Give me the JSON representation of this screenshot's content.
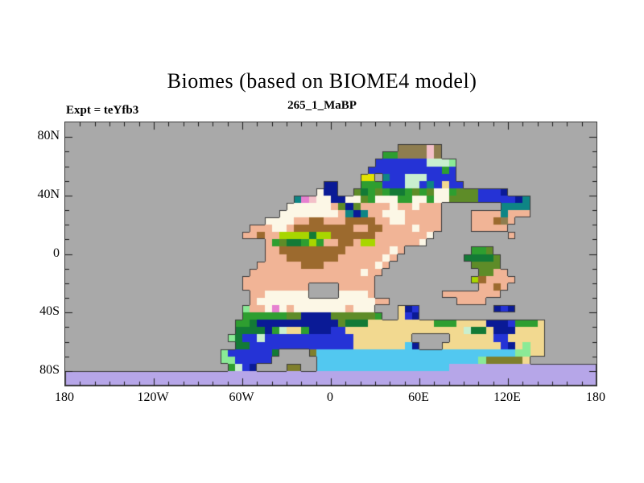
{
  "title": "Biomes (based on BIOME4 model)",
  "subtitle": "265_1_MaBP",
  "experiment_label": "Expt = teYfb3",
  "chart_data": {
    "type": "heatmap",
    "description": "Paleo biome map on longitude/latitude axes; gray is ocean, colored grid cells are model biomes on land",
    "x_axis": {
      "range_deg": [
        -180,
        180
      ],
      "minor_tick_step_deg": 10,
      "ticks": [
        {
          "label": "180",
          "lon": -180
        },
        {
          "label": "120W",
          "lon": -120
        },
        {
          "label": "60W",
          "lon": -60
        },
        {
          "label": "0",
          "lon": 0
        },
        {
          "label": "60E",
          "lon": 60
        },
        {
          "label": "120E",
          "lon": 120
        },
        {
          "label": "180",
          "lon": 180
        }
      ]
    },
    "y_axis": {
      "range_deg": [
        90,
        -90
      ],
      "minor_tick_step_deg": 10,
      "ticks": [
        {
          "label": "80N",
          "lat": 80
        },
        {
          "label": "40N",
          "lat": 40
        },
        {
          "label": "0",
          "lat": 0
        },
        {
          "label": "40S",
          "lat": -40
        },
        {
          "label": "80S",
          "lat": -80
        }
      ]
    },
    "frame_color": "#3b3b3b",
    "coast_color": "#3a3a3a",
    "tick_color": "#1a1a1a",
    "ocean_color": "#a9a9a9",
    "palette": {
      ".": {
        "name": "ocean-gray",
        "hex": "#a9a9a9"
      },
      "W": {
        "name": "cream",
        "hex": "#fcf7e6"
      },
      "S": {
        "name": "salmon",
        "hex": "#f1b496"
      },
      "B": {
        "name": "brown",
        "hex": "#9c6a2e"
      },
      "O": {
        "name": "olive-brown",
        "hex": "#8e7d4f"
      },
      "g": {
        "name": "olive-green",
        "hex": "#5e8c28"
      },
      "G": {
        "name": "green",
        "hex": "#2e9e30"
      },
      "D": {
        "name": "dark-green",
        "hex": "#137a36"
      },
      "L": {
        "name": "lime",
        "hex": "#a8d600"
      },
      "M": {
        "name": "mint",
        "hex": "#c9efcf"
      },
      "l": {
        "name": "pale-green",
        "hex": "#8aea96"
      },
      "b": {
        "name": "royal-blue",
        "hex": "#2533d6"
      },
      "N": {
        "name": "navy",
        "hex": "#0a1a96"
      },
      "T": {
        "name": "teal",
        "hex": "#0e8585"
      },
      "C": {
        "name": "cyan",
        "hex": "#52c8f0"
      },
      "K": {
        "name": "sand",
        "hex": "#f2d990"
      },
      "V": {
        "name": "lavender",
        "hex": "#b6a6e8"
      },
      "Y": {
        "name": "yellow",
        "hex": "#e3e300"
      },
      "P": {
        "name": "pink",
        "hex": "#f3c0c8"
      },
      "o": {
        "name": "dark-olive",
        "hex": "#7f7f2c"
      },
      "m": {
        "name": "magenta",
        "hex": "#e680d0"
      }
    },
    "grid": {
      "cols": 72,
      "rows": 36,
      "lon_range": [
        -180,
        180
      ],
      "lat_range": [
        90,
        -90
      ],
      "rows_rle": [
        "72.",
        "72.",
        "72.",
        "45. 4O 1P 1O 21.",
        "43. 2G 4O 1P 1O 21.",
        "42. 7b 3M 1l 19.",
        "41. 10b 1G 1b 19.",
        "40. 2Y 1. 1T 2b 3M 4b 19.",
        "35. 2N 3. 3G 3b 2M 1b 1T 1b 1K 2b 18.",
        "34. 1W 2N 2. 1g 1D 1G 1g 1G 2D 1G 1g 1G 1g 2W 1G 3g 3b 1N 12.",
        "31. 1T 1m 1P 2W 2N 2W 1g 1G 3W 2G 2W 1G 2W 4g 5b 1N 1T 9.",
        "30. 6W 1S 1g 1N 1g 4S 1W 2S 1W 3S 8. 4T 9.",
        "29. 8W 1S 1T 1N 1T 2S 3W 5S 4. 4S 1T 3S 9.",
        "27. 4W 2S 2B 3S 4B 2S 2W 5S 4. 3S 1B 1O 1S 11.",
        "25. 3S 2W 1S 8B 2S 2B 4S 1W 3S 4. 5S 12.",
        "24. 2S 1B 2S 4L 1D 2L 6B 7S 1W 10. 1S 11.",
        "27. 1S 1G 1g 2D 1G 1L 1G 2S 2B 1S 2L 6S 1W 23.",
        "27. 2S 9B 6S 1W 1S 9. 2G 1g 14.",
        "27. 3S 7B 6S 1W 1S 9. 4D 1g 13.",
        "26. 6S 3B 7S 1W 1S 11. 4g 13.",
        "25. 15S 1W 2S 13. 2g 2S 12.",
        "24. 18S 13. 1L 1B 4S 11.",
        "24. 9S 4. 5S 14. 2S 1B 1S 12.",
        "25. 2S 6W 4. 4W 1S 9. 8S 13.",
        "25. 1S 16W 2S 9. 4S 15.",
        "24. 1l 2S 1W 1m 1W 1S 7W 1S 3W 3. 1K 1N 1b 10. 1N 1b 1N 11.",
        "24. 6G 2g 4N 6g 1G 2. 1K 1b 1N 24.",
        "23. 2G 1D 11N 1g 3D 9K 3G 4K 3N 1b 3G 1K 7.",
        "23. 4D 1N 1G 1M 2K 1G 3N 2b 16K 1M 2D 1K 3N 4K 7.",
        "22. 1l 1D 2b 1M 12b 8K 5. 6K 2b 5K 7.",
        "23. 2D 14b 7K 1C 1N 3. 8K 1b 1N 1K 1l 2K 7.",
        "21. 1l 6b 1D 4. 1o 27C 2l 2K 7.",
        "21. 2l 5b 6. 22C 1l 5o 1K 9.",
        "22. 1G 1M 1b 1N 4. 2o 2. 18C 20V",
        "72V",
        "72V"
      ]
    }
  }
}
